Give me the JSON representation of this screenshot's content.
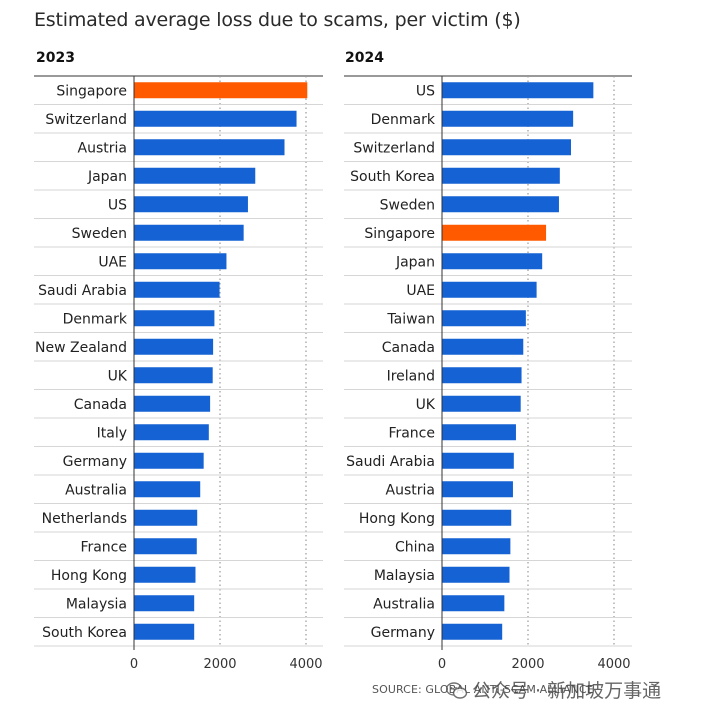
{
  "title": "Estimated average loss due to scams, per victim ($)",
  "source": "SOURCE: GLOBAL ANTI-SCAM ALLIANCE",
  "watermark": "公众号 · 新加坡万事通",
  "colors": {
    "highlight": "#ff5a00",
    "bar": "#1462d4",
    "grid": "#9a9a9a",
    "separator": "#d6d6d6"
  },
  "chart_data": [
    {
      "type": "bar",
      "orientation": "horizontal",
      "title": "2023",
      "categories": [
        "Singapore",
        "Switzerland",
        "Austria",
        "Japan",
        "US",
        "Sweden",
        "UAE",
        "Saudi Arabia",
        "Denmark",
        "New Zealand",
        "UK",
        "Canada",
        "Italy",
        "Germany",
        "Australia",
        "Netherlands",
        "France",
        "Hong Kong",
        "Malaysia",
        "South Korea"
      ],
      "values": [
        4030,
        3780,
        3500,
        2820,
        2650,
        2550,
        2150,
        1990,
        1870,
        1840,
        1830,
        1770,
        1740,
        1620,
        1540,
        1470,
        1460,
        1430,
        1400,
        1400
      ],
      "highlight": "Singapore",
      "xlim": [
        0,
        4300
      ],
      "xticks": [
        0,
        2000,
        4000
      ],
      "xtick_labels": [
        "0",
        "2000",
        "4000"
      ],
      "grid": "vertical dotted"
    },
    {
      "type": "bar",
      "orientation": "horizontal",
      "title": "2024",
      "categories": [
        "US",
        "Denmark",
        "Switzerland",
        "South Korea",
        "Sweden",
        "Singapore",
        "Japan",
        "UAE",
        "Taiwan",
        "Canada",
        "Ireland",
        "UK",
        "France",
        "Saudi Arabia",
        "Austria",
        "Hong Kong",
        "China",
        "Malaysia",
        "Australia",
        "Germany"
      ],
      "values": [
        3520,
        3050,
        3000,
        2740,
        2720,
        2420,
        2330,
        2200,
        1950,
        1890,
        1850,
        1830,
        1720,
        1670,
        1650,
        1610,
        1590,
        1570,
        1450,
        1400
      ],
      "highlight": "Singapore",
      "xlim": [
        0,
        4300
      ],
      "xticks": [
        0,
        2000,
        4000
      ],
      "xtick_labels": [
        "0",
        "2000",
        "4000"
      ],
      "grid": "vertical dotted"
    }
  ]
}
